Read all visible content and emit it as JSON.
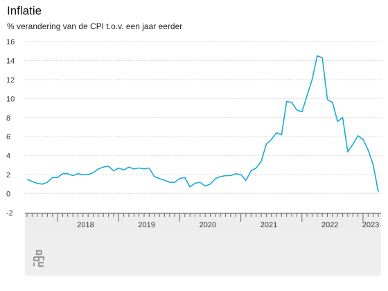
{
  "chart_data": {
    "type": "line",
    "title": "Inflatie",
    "subtitle": "% verandering van de CPI t.o.v. een jaar eerder",
    "xlabel": "",
    "ylabel": "",
    "ylim": [
      -2,
      16
    ],
    "yticks": [
      "16",
      "14",
      "12",
      "10",
      "8",
      "6",
      "4",
      "2",
      "0",
      "-2"
    ],
    "x_start": "2017-07",
    "year_labels": [
      "2018",
      "2019",
      "2020",
      "2021",
      "2022",
      "2023"
    ],
    "series": [
      {
        "color": "#1aa9d8",
        "values": [
          1.5,
          1.3,
          1.1,
          1.0,
          1.2,
          1.7,
          1.7,
          2.1,
          2.1,
          1.9,
          2.1,
          2.0,
          2.0,
          2.2,
          2.6,
          2.8,
          2.9,
          2.4,
          2.7,
          2.5,
          2.8,
          2.6,
          2.7,
          2.6,
          2.7,
          1.8,
          1.6,
          1.4,
          1.2,
          1.2,
          1.6,
          1.7,
          0.7,
          1.1,
          1.2,
          0.8,
          1.0,
          1.6,
          1.8,
          1.9,
          1.9,
          2.1,
          2.0,
          1.4,
          2.4,
          2.7,
          3.4,
          5.2,
          5.7,
          6.4,
          6.2,
          9.7,
          9.6,
          8.8,
          8.6,
          10.3,
          12.0,
          14.5,
          14.3,
          9.9,
          9.6,
          7.6,
          8.0,
          4.4,
          5.2,
          6.1,
          5.7,
          4.6,
          3.0,
          0.2
        ]
      }
    ]
  },
  "footer": {
    "logo_icon": "cbs-logo-icon"
  }
}
